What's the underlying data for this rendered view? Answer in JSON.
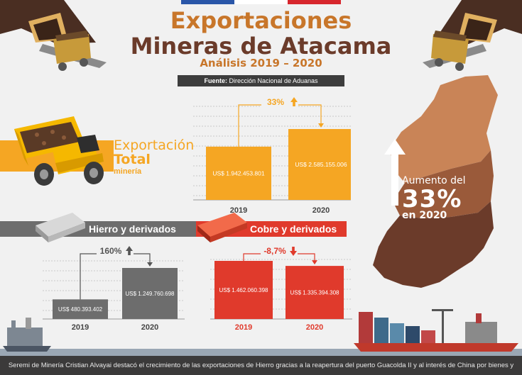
{
  "header": {
    "title_line1": "Exportaciones",
    "title_line2": "Mineras de Atacama",
    "subtitle": "Análisis 2019 – 2020",
    "source_label": "Fuente:",
    "source_text": "Dirección Nacional de Aduanas"
  },
  "sections": {
    "total_label_1": "Exportación",
    "total_label_2": "Total",
    "total_label_3": "minería",
    "hierro_label": "Hierro y derivados",
    "cobre_label": "Cobre y derivados"
  },
  "map": {
    "line1": "Aumento del",
    "line2": "33%",
    "line3": "en 2020"
  },
  "footer": {
    "caption": "Seremi de Minería Cristian Alvayai destacó el crecimiento de las exportaciones de Hierro gracias a la reapertura del puerto Guacolda II y al interés de China por bienes y recursos chilenos."
  },
  "colors": {
    "orange": "#f5a623",
    "gray": "#6d6d6d",
    "red": "#e03a2c",
    "brown": "#6b3b2a",
    "title_orange": "#c8762a"
  },
  "chart_data": [
    {
      "type": "bar",
      "name": "total",
      "categories": [
        "2019",
        "2020"
      ],
      "values": [
        1942453801,
        2585155006
      ],
      "value_labels": [
        "US$ 1.942.453.801",
        "US$ 2.585.155.006"
      ],
      "change_label": "33%",
      "change_direction": "up",
      "color": "#f5a623"
    },
    {
      "type": "bar",
      "name": "hierro",
      "categories": [
        "2019",
        "2020"
      ],
      "values": [
        480393402,
        1249760698
      ],
      "value_labels": [
        "US$ 480.393.402",
        "US$ 1.249.760.698"
      ],
      "change_label": "160%",
      "change_direction": "up",
      "color": "#6d6d6d"
    },
    {
      "type": "bar",
      "name": "cobre",
      "categories": [
        "2019",
        "2020"
      ],
      "values": [
        1462060398,
        1335394308
      ],
      "value_labels": [
        "US$ 1.462.060.398",
        "US$ 1.335.394.308"
      ],
      "change_label": "-8,7%",
      "change_direction": "down",
      "color": "#e03a2c"
    }
  ]
}
